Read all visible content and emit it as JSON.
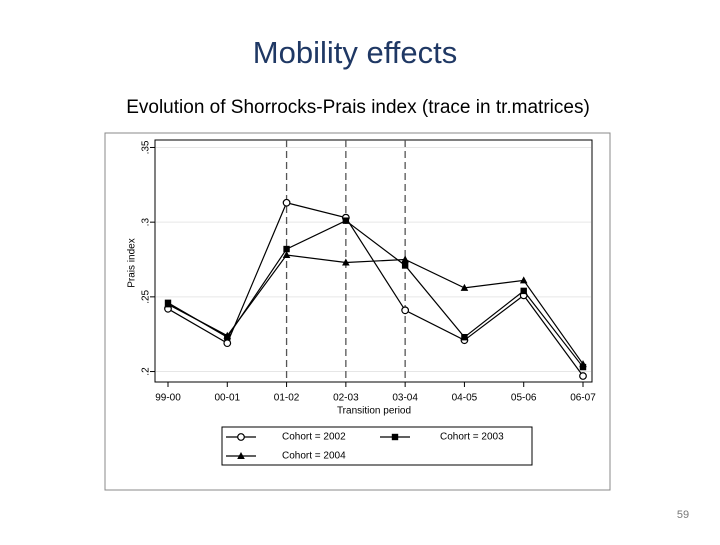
{
  "title": "Mobility effects",
  "subtitle": "Evolution of Shorrocks-Prais index (trace in tr.matrices)",
  "page_number": "59",
  "chart_data": {
    "type": "line",
    "ylabel": "Prais index",
    "xlabel": "Transition period",
    "categories": [
      "99-00",
      "00-01",
      "01-02",
      "02-03",
      "03-04",
      "04-05",
      "05-06",
      "06-07"
    ],
    "series": [
      {
        "name": "Cohort = 2002",
        "color": "#000000",
        "marker": "circle",
        "values": [
          0.242,
          0.219,
          0.313,
          0.303,
          0.241,
          0.221,
          0.251,
          0.197
        ]
      },
      {
        "name": "Cohort = 2003",
        "color": "#000000",
        "marker": "square",
        "values": [
          0.246,
          0.223,
          0.282,
          0.301,
          0.271,
          0.223,
          0.254,
          0.203
        ]
      },
      {
        "name": "Cohort = 2004",
        "color": "#000000",
        "marker": "triangle",
        "values": [
          0.245,
          0.224,
          0.278,
          0.273,
          0.275,
          0.256,
          0.261,
          0.205
        ]
      }
    ],
    "ylim": [
      0.193,
      0.355
    ],
    "yticks": [
      {
        "value": 0.2,
        "label": ".2"
      },
      {
        "value": 0.25,
        "label": ".25"
      },
      {
        "value": 0.3,
        "label": ".3"
      },
      {
        "value": 0.35,
        "label": ".35"
      }
    ],
    "grid": true,
    "reference_lines": [
      "01-02",
      "02-03",
      "03-04"
    ],
    "legend": "bottom"
  }
}
